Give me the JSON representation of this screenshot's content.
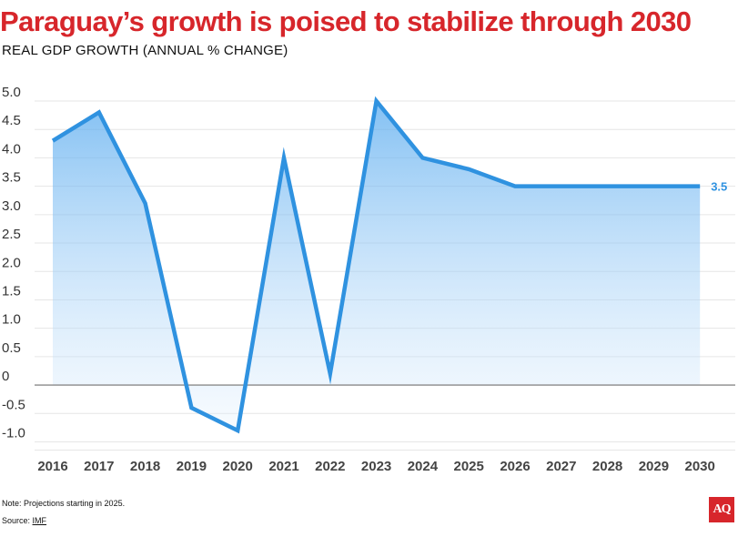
{
  "header": {
    "title": "Paraguay’s growth is poised to stabilize through 2030",
    "subtitle": "REAL GDP GROWTH (ANNUAL % CHANGE)"
  },
  "chart_data": {
    "type": "area",
    "title": "Paraguay’s growth is poised to stabilize through 2030",
    "ylabel": "Real GDP growth (annual % change)",
    "xlabel": "",
    "categories": [
      "2016",
      "2017",
      "2018",
      "2019",
      "2020",
      "2021",
      "2022",
      "2023",
      "2024",
      "2025",
      "2026",
      "2027",
      "2028",
      "2029",
      "2030"
    ],
    "series": [
      {
        "name": "Real GDP growth",
        "values": [
          4.3,
          4.8,
          3.2,
          -0.4,
          -0.8,
          4.0,
          0.2,
          5.0,
          4.0,
          3.8,
          3.5,
          3.5,
          3.5,
          3.5,
          3.5
        ],
        "color": "#2f92e0"
      }
    ],
    "yticks": [
      "5.0",
      "4.5",
      "4.0",
      "3.5",
      "3.0",
      "2.5",
      "2.0",
      "1.5",
      "1.0",
      "0.5",
      "0",
      "-0.5",
      "-1.0"
    ],
    "ylim": [
      -1.0,
      5.0
    ],
    "end_label": "3.5",
    "grid": true
  },
  "footer": {
    "note": "Note: Projections starting in 2025.",
    "source_prefix": "Source: ",
    "source_link": "IMF",
    "logo": "AQ"
  }
}
